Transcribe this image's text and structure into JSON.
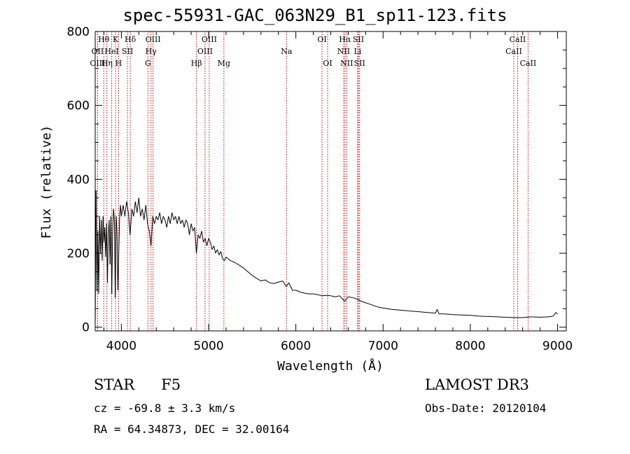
{
  "header": {
    "title": "spec-55931-GAC_063N29_B1_sp11-123.fits"
  },
  "footer": {
    "object_class": "STAR",
    "subclass": "F5",
    "survey": "LAMOST DR3",
    "cz": "cz = -69.8 ± 3.3 km/s",
    "obs_date": "Obs-Date: 20120104",
    "radec": "RA =  64.34873, DEC =  32.00164"
  },
  "chart_data": {
    "type": "line",
    "title": "spec-55931-GAC_063N29_B1_sp11-123.fits",
    "xlabel": "Wavelength (Å)",
    "ylabel": "Flux (relative)",
    "xlim": [
      3700,
      9100
    ],
    "ylim": [
      -10,
      800
    ],
    "xticks": [
      4000,
      5000,
      6000,
      7000,
      8000,
      9000
    ],
    "yticks": [
      0,
      200,
      400,
      600,
      800
    ],
    "series_color": "#000000",
    "line_color": "#cc0000",
    "series": [
      {
        "name": "flux",
        "points": [
          [
            3700,
            0
          ],
          [
            3710,
            370
          ],
          [
            3720,
            100
          ],
          [
            3730,
            260
          ],
          [
            3740,
            90
          ],
          [
            3750,
            300
          ],
          [
            3760,
            200
          ],
          [
            3770,
            290
          ],
          [
            3780,
            180
          ],
          [
            3790,
            300
          ],
          [
            3800,
            230
          ],
          [
            3810,
            270
          ],
          [
            3820,
            190
          ],
          [
            3830,
            280
          ],
          [
            3840,
            120
          ],
          [
            3850,
            250
          ],
          [
            3860,
            290
          ],
          [
            3870,
            170
          ],
          [
            3880,
            300
          ],
          [
            3890,
            90
          ],
          [
            3900,
            260
          ],
          [
            3910,
            320
          ],
          [
            3920,
            290
          ],
          [
            3930,
            80
          ],
          [
            3940,
            300
          ],
          [
            3950,
            260
          ],
          [
            3960,
            100
          ],
          [
            3970,
            200
          ],
          [
            3980,
            300
          ],
          [
            3990,
            330
          ],
          [
            4000,
            300
          ],
          [
            4020,
            330
          ],
          [
            4040,
            300
          ],
          [
            4060,
            340
          ],
          [
            4080,
            310
          ],
          [
            4100,
            250
          ],
          [
            4120,
            320
          ],
          [
            4140,
            300
          ],
          [
            4160,
            340
          ],
          [
            4180,
            310
          ],
          [
            4200,
            350
          ],
          [
            4220,
            300
          ],
          [
            4240,
            320
          ],
          [
            4260,
            290
          ],
          [
            4280,
            330
          ],
          [
            4300,
            280
          ],
          [
            4320,
            260
          ],
          [
            4340,
            220
          ],
          [
            4360,
            300
          ],
          [
            4380,
            280
          ],
          [
            4400,
            300
          ],
          [
            4420,
            290
          ],
          [
            4440,
            310
          ],
          [
            4460,
            280
          ],
          [
            4480,
            300
          ],
          [
            4500,
            290
          ],
          [
            4520,
            270
          ],
          [
            4540,
            300
          ],
          [
            4560,
            280
          ],
          [
            4580,
            310
          ],
          [
            4600,
            290
          ],
          [
            4620,
            300
          ],
          [
            4640,
            280
          ],
          [
            4660,
            300
          ],
          [
            4680,
            280
          ],
          [
            4700,
            290
          ],
          [
            4720,
            270
          ],
          [
            4740,
            290
          ],
          [
            4760,
            280
          ],
          [
            4780,
            250
          ],
          [
            4800,
            280
          ],
          [
            4820,
            260
          ],
          [
            4840,
            270
          ],
          [
            4860,
            200
          ],
          [
            4880,
            250
          ],
          [
            4900,
            240
          ],
          [
            4920,
            260
          ],
          [
            4940,
            230
          ],
          [
            4960,
            240
          ],
          [
            4980,
            220
          ],
          [
            5000,
            240
          ],
          [
            5020,
            230
          ],
          [
            5040,
            210
          ],
          [
            5060,
            220
          ],
          [
            5080,
            200
          ],
          [
            5100,
            210
          ],
          [
            5120,
            195
          ],
          [
            5140,
            205
          ],
          [
            5160,
            185
          ],
          [
            5180,
            180
          ],
          [
            5200,
            190
          ],
          [
            5250,
            180
          ],
          [
            5300,
            175
          ],
          [
            5350,
            168
          ],
          [
            5400,
            160
          ],
          [
            5450,
            150
          ],
          [
            5500,
            140
          ],
          [
            5550,
            132
          ],
          [
            5600,
            125
          ],
          [
            5650,
            128
          ],
          [
            5700,
            120
          ],
          [
            5750,
            118
          ],
          [
            5800,
            122
          ],
          [
            5850,
            125
          ],
          [
            5890,
            110
          ],
          [
            5920,
            120
          ],
          [
            5960,
            100
          ],
          [
            6000,
            100
          ],
          [
            6050,
            95
          ],
          [
            6100,
            92
          ],
          [
            6150,
            90
          ],
          [
            6200,
            90
          ],
          [
            6250,
            88
          ],
          [
            6300,
            85
          ],
          [
            6350,
            86
          ],
          [
            6400,
            85
          ],
          [
            6450,
            82
          ],
          [
            6500,
            85
          ],
          [
            6560,
            70
          ],
          [
            6600,
            82
          ],
          [
            6650,
            80
          ],
          [
            6700,
            76
          ],
          [
            6750,
            70
          ],
          [
            6800,
            66
          ],
          [
            6850,
            62
          ],
          [
            6900,
            58
          ],
          [
            6950,
            54
          ],
          [
            7000,
            52
          ],
          [
            7100,
            48
          ],
          [
            7200,
            46
          ],
          [
            7300,
            44
          ],
          [
            7400,
            42
          ],
          [
            7500,
            40
          ],
          [
            7600,
            38
          ],
          [
            7620,
            48
          ],
          [
            7640,
            36
          ],
          [
            7700,
            36
          ],
          [
            7800,
            34
          ],
          [
            7900,
            33
          ],
          [
            8000,
            32
          ],
          [
            8100,
            30
          ],
          [
            8200,
            29
          ],
          [
            8300,
            28
          ],
          [
            8400,
            27
          ],
          [
            8500,
            26
          ],
          [
            8600,
            26
          ],
          [
            8700,
            28
          ],
          [
            8800,
            27
          ],
          [
            8900,
            28
          ],
          [
            8950,
            30
          ],
          [
            8980,
            40
          ],
          [
            9000,
            35
          ]
        ]
      }
    ],
    "spectral_lines": [
      {
        "label": "Hθ",
        "wavelength": 3798,
        "row": 0
      },
      {
        "label": "K",
        "wavelength": 3934,
        "row": 0
      },
      {
        "label": "Hδ",
        "wavelength": 4102,
        "row": 0
      },
      {
        "label": "OIII",
        "wavelength": 4363,
        "row": 0
      },
      {
        "label": "OIII",
        "wavelength": 5007,
        "row": 0
      },
      {
        "label": "OI",
        "wavelength": 6300,
        "row": 0
      },
      {
        "label": "Hα",
        "wavelength": 6563,
        "row": 0
      },
      {
        "label": "SII",
        "wavelength": 6717,
        "row": 0
      },
      {
        "label": "CaII",
        "wavelength": 8542,
        "row": 0
      },
      {
        "label": "OII",
        "wavelength": 3727,
        "row": 1
      },
      {
        "label": "HeI",
        "wavelength": 3889,
        "row": 1
      },
      {
        "label": "SII",
        "wavelength": 4070,
        "row": 1
      },
      {
        "label": "Hγ",
        "wavelength": 4340,
        "row": 1
      },
      {
        "label": "OIII",
        "wavelength": 4959,
        "row": 1
      },
      {
        "label": "Na",
        "wavelength": 5893,
        "row": 1
      },
      {
        "label": "NII",
        "wavelength": 6548,
        "row": 1
      },
      {
        "label": "Li",
        "wavelength": 6708,
        "row": 1
      },
      {
        "label": "CaII",
        "wavelength": 8498,
        "row": 1
      },
      {
        "label": "OIII",
        "wavelength": 3727,
        "row": 2
      },
      {
        "label": "Hη",
        "wavelength": 3835,
        "row": 2
      },
      {
        "label": "H",
        "wavelength": 3968,
        "row": 2
      },
      {
        "label": "G",
        "wavelength": 4305,
        "row": 2
      },
      {
        "label": "Hβ",
        "wavelength": 4861,
        "row": 2
      },
      {
        "label": "Mg",
        "wavelength": 5175,
        "row": 2
      },
      {
        "label": "OI",
        "wavelength": 6364,
        "row": 2
      },
      {
        "label": "NII",
        "wavelength": 6583,
        "row": 2
      },
      {
        "label": "SII",
        "wavelength": 6731,
        "row": 2
      },
      {
        "label": "CaII",
        "wavelength": 8662,
        "row": 2
      }
    ]
  }
}
